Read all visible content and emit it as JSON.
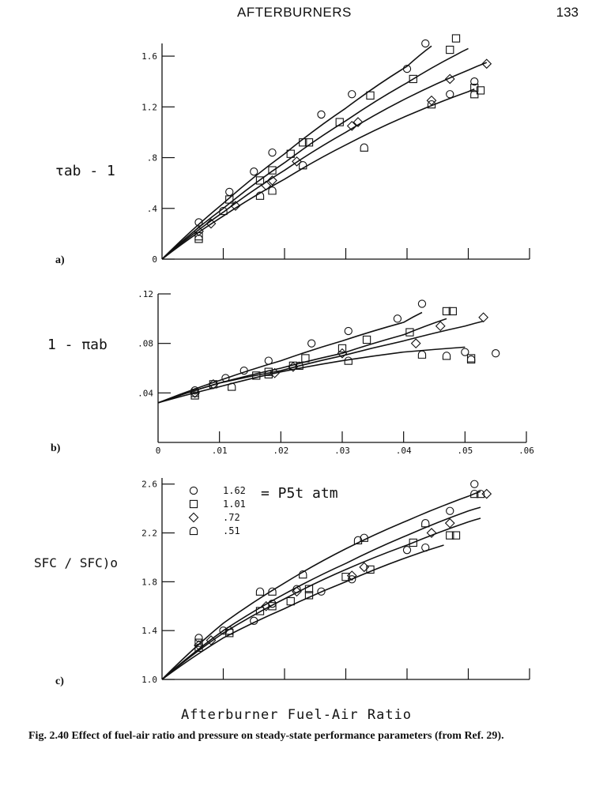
{
  "page": {
    "running_head": "AFTERBURNERS",
    "page_number": "133"
  },
  "figure": {
    "caption": "Fig. 2.40   Effect of fuel-air ratio and pressure on steady-state performance parameters (from Ref. 29).",
    "x_axis_label": "Afterburner Fuel-Air Ratio",
    "legend": {
      "title": "= P5t atm",
      "entries": [
        {
          "marker": "circle",
          "label": "1.62"
        },
        {
          "marker": "square",
          "label": "1.01"
        },
        {
          "marker": "diamond",
          "label": ".72"
        },
        {
          "marker": "dshape",
          "label": ".51"
        }
      ]
    }
  },
  "chart_data": [
    {
      "type": "scatter",
      "panel": "a)",
      "ylabel": "τab - 1",
      "xlim": [
        0,
        0.06
      ],
      "ylim": [
        0,
        1.7
      ],
      "yticks": [
        0,
        0.4,
        0.8,
        1.2,
        1.6
      ],
      "ytick_labels": [
        "0",
        ".4",
        ".8",
        "1.2",
        "1.6"
      ],
      "xticks": [
        0,
        0.01,
        0.02,
        0.03,
        0.04,
        0.05,
        0.06
      ],
      "series": [
        {
          "marker": "circle",
          "points": [
            [
              0.006,
              0.29
            ],
            [
              0.011,
              0.53
            ],
            [
              0.015,
              0.69
            ],
            [
              0.018,
              0.84
            ],
            [
              0.026,
              1.14
            ],
            [
              0.031,
              1.3
            ],
            [
              0.04,
              1.5
            ],
            [
              0.043,
              1.7
            ],
            [
              0.047,
              1.3
            ],
            [
              0.051,
              1.4
            ]
          ],
          "fit": [
            [
              0,
              0
            ],
            [
              0.01,
              0.44
            ],
            [
              0.02,
              0.83
            ],
            [
              0.03,
              1.19
            ],
            [
              0.04,
              1.52
            ],
            [
              0.044,
              1.68
            ]
          ]
        },
        {
          "marker": "square",
          "points": [
            [
              0.006,
              0.18
            ],
            [
              0.011,
              0.47
            ],
            [
              0.016,
              0.62
            ],
            [
              0.018,
              0.7
            ],
            [
              0.021,
              0.83
            ],
            [
              0.023,
              0.92
            ],
            [
              0.024,
              0.92
            ],
            [
              0.029,
              1.08
            ],
            [
              0.034,
              1.29
            ],
            [
              0.041,
              1.42
            ],
            [
              0.047,
              1.65
            ],
            [
              0.048,
              1.74
            ],
            [
              0.051,
              1.35
            ],
            [
              0.052,
              1.33
            ]
          ],
          "fit": [
            [
              0,
              0
            ],
            [
              0.01,
              0.4
            ],
            [
              0.02,
              0.76
            ],
            [
              0.03,
              1.09
            ],
            [
              0.04,
              1.39
            ],
            [
              0.05,
              1.66
            ],
            [
              0.048,
              1.61
            ]
          ]
        },
        {
          "marker": "diamond",
          "points": [
            [
              0.006,
              0.22
            ],
            [
              0.008,
              0.28
            ],
            [
              0.012,
              0.42
            ],
            [
              0.017,
              0.58
            ],
            [
              0.018,
              0.62
            ],
            [
              0.022,
              0.77
            ],
            [
              0.031,
              1.05
            ],
            [
              0.032,
              1.08
            ],
            [
              0.044,
              1.25
            ],
            [
              0.047,
              1.42
            ],
            [
              0.053,
              1.54
            ]
          ],
          "fit": [
            [
              0,
              0
            ],
            [
              0.01,
              0.37
            ],
            [
              0.02,
              0.7
            ],
            [
              0.03,
              1.0
            ],
            [
              0.04,
              1.27
            ],
            [
              0.05,
              1.49
            ],
            [
              0.053,
              1.55
            ]
          ]
        },
        {
          "marker": "dshape",
          "points": [
            [
              0.006,
              0.16
            ],
            [
              0.01,
              0.38
            ],
            [
              0.016,
              0.5
            ],
            [
              0.018,
              0.54
            ],
            [
              0.023,
              0.74
            ],
            [
              0.033,
              0.88
            ],
            [
              0.044,
              1.22
            ],
            [
              0.051,
              1.3
            ]
          ],
          "fit": [
            [
              0,
              0
            ],
            [
              0.01,
              0.34
            ],
            [
              0.02,
              0.63
            ],
            [
              0.03,
              0.9
            ],
            [
              0.04,
              1.13
            ],
            [
              0.05,
              1.32
            ],
            [
              0.051,
              1.34
            ]
          ]
        }
      ]
    },
    {
      "type": "scatter",
      "panel": "b)",
      "ylabel": "1 - πab",
      "xlim": [
        0,
        0.06
      ],
      "ylim": [
        0,
        0.12
      ],
      "yticks": [
        0.04,
        0.08,
        0.12
      ],
      "ytick_labels": [
        ".04",
        ".08",
        ".12"
      ],
      "xticks": [
        0,
        0.01,
        0.02,
        0.03,
        0.04,
        0.05,
        0.06
      ],
      "xtick_labels": [
        "0",
        ".01",
        ".02",
        ".03",
        ".04",
        ".05",
        ".06"
      ],
      "series": [
        {
          "marker": "circle",
          "points": [
            [
              0.006,
              0.042
            ],
            [
              0.011,
              0.052
            ],
            [
              0.014,
              0.058
            ],
            [
              0.018,
              0.066
            ],
            [
              0.025,
              0.08
            ],
            [
              0.031,
              0.09
            ],
            [
              0.039,
              0.1
            ],
            [
              0.043,
              0.112
            ],
            [
              0.055,
              0.072
            ],
            [
              0.05,
              0.073
            ]
          ],
          "fit": [
            [
              0,
              0.032
            ],
            [
              0.01,
              0.05
            ],
            [
              0.02,
              0.066
            ],
            [
              0.03,
              0.082
            ],
            [
              0.04,
              0.097
            ],
            [
              0.043,
              0.105
            ]
          ]
        },
        {
          "marker": "square",
          "points": [
            [
              0.006,
              0.04
            ],
            [
              0.009,
              0.047
            ],
            [
              0.016,
              0.054
            ],
            [
              0.018,
              0.057
            ],
            [
              0.022,
              0.062
            ],
            [
              0.024,
              0.068
            ],
            [
              0.03,
              0.076
            ],
            [
              0.034,
              0.083
            ],
            [
              0.041,
              0.089
            ],
            [
              0.047,
              0.106
            ],
            [
              0.048,
              0.106
            ],
            [
              0.051,
              0.068
            ]
          ],
          "fit": [
            [
              0,
              0.032
            ],
            [
              0.01,
              0.048
            ],
            [
              0.02,
              0.06
            ],
            [
              0.03,
              0.072
            ],
            [
              0.04,
              0.087
            ],
            [
              0.047,
              0.1
            ]
          ]
        },
        {
          "marker": "diamond",
          "points": [
            [
              0.006,
              0.04
            ],
            [
              0.009,
              0.047
            ],
            [
              0.019,
              0.056
            ],
            [
              0.022,
              0.061
            ],
            [
              0.03,
              0.072
            ],
            [
              0.042,
              0.08
            ],
            [
              0.046,
              0.094
            ],
            [
              0.053,
              0.101
            ]
          ],
          "fit": [
            [
              0,
              0.032
            ],
            [
              0.01,
              0.048
            ],
            [
              0.02,
              0.058
            ],
            [
              0.03,
              0.07
            ],
            [
              0.04,
              0.082
            ],
            [
              0.05,
              0.094
            ],
            [
              0.053,
              0.098
            ]
          ]
        },
        {
          "marker": "dshape",
          "points": [
            [
              0.006,
              0.038
            ],
            [
              0.012,
              0.045
            ],
            [
              0.018,
              0.055
            ],
            [
              0.023,
              0.062
            ],
            [
              0.031,
              0.066
            ],
            [
              0.043,
              0.071
            ],
            [
              0.047,
              0.07
            ],
            [
              0.051,
              0.067
            ]
          ],
          "fit": [
            [
              0,
              0.032
            ],
            [
              0.01,
              0.045
            ],
            [
              0.02,
              0.057
            ],
            [
              0.03,
              0.066
            ],
            [
              0.04,
              0.073
            ],
            [
              0.05,
              0.077
            ]
          ]
        }
      ]
    },
    {
      "type": "scatter",
      "panel": "c)",
      "ylabel": "SFC / SFC)o",
      "xlim": [
        0,
        0.06
      ],
      "ylim": [
        1.0,
        2.65
      ],
      "yticks": [
        1.0,
        1.4,
        1.8,
        2.2,
        2.6
      ],
      "ytick_labels": [
        "1.0",
        "1.4",
        "1.8",
        "2.2",
        "2.6"
      ],
      "xticks": [
        0,
        0.01,
        0.02,
        0.03,
        0.04,
        0.05,
        0.06
      ],
      "series": [
        {
          "marker": "circle",
          "points": [
            [
              0.006,
              1.34
            ],
            [
              0.01,
              1.4
            ],
            [
              0.015,
              1.48
            ],
            [
              0.018,
              1.62
            ],
            [
              0.022,
              1.74
            ],
            [
              0.026,
              1.72
            ],
            [
              0.031,
              1.82
            ],
            [
              0.04,
              2.06
            ],
            [
              0.043,
              2.08
            ],
            [
              0.047,
              2.38
            ],
            [
              0.051,
              2.6
            ]
          ],
          "fit": [
            [
              0,
              1.0
            ],
            [
              0.01,
              1.38
            ],
            [
              0.02,
              1.66
            ],
            [
              0.03,
              1.9
            ],
            [
              0.04,
              2.1
            ],
            [
              0.05,
              2.29
            ],
            [
              0.052,
              2.32
            ]
          ]
        },
        {
          "marker": "square",
          "points": [
            [
              0.006,
              1.3
            ],
            [
              0.011,
              1.38
            ],
            [
              0.016,
              1.56
            ],
            [
              0.018,
              1.6
            ],
            [
              0.021,
              1.64
            ],
            [
              0.024,
              1.69
            ],
            [
              0.024,
              1.74
            ],
            [
              0.03,
              1.84
            ],
            [
              0.034,
              1.9
            ],
            [
              0.041,
              2.12
            ],
            [
              0.047,
              2.18
            ],
            [
              0.048,
              2.18
            ]
          ],
          "fit": [
            [
              0,
              1.0
            ],
            [
              0.01,
              1.4
            ],
            [
              0.02,
              1.7
            ],
            [
              0.03,
              1.95
            ],
            [
              0.04,
              2.18
            ],
            [
              0.05,
              2.38
            ],
            [
              0.052,
              2.41
            ]
          ]
        },
        {
          "marker": "diamond",
          "points": [
            [
              0.006,
              1.28
            ],
            [
              0.008,
              1.32
            ],
            [
              0.017,
              1.6
            ],
            [
              0.022,
              1.72
            ],
            [
              0.031,
              1.85
            ],
            [
              0.033,
              1.92
            ],
            [
              0.044,
              2.2
            ],
            [
              0.047,
              2.28
            ],
            [
              0.053,
              2.52
            ]
          ],
          "fit": [
            [
              0,
              1.0
            ],
            [
              0.01,
              1.34
            ],
            [
              0.02,
              1.58
            ],
            [
              0.03,
              1.8
            ],
            [
              0.04,
              2.0
            ],
            [
              0.046,
              2.1
            ]
          ]
        },
        {
          "marker": "dshape",
          "points": [
            [
              0.006,
              1.26
            ],
            [
              0.011,
              1.4
            ],
            [
              0.016,
              1.72
            ],
            [
              0.018,
              1.72
            ],
            [
              0.023,
              1.86
            ],
            [
              0.032,
              2.14
            ],
            [
              0.033,
              2.16
            ],
            [
              0.043,
              2.28
            ],
            [
              0.051,
              2.52
            ],
            [
              0.052,
              2.52
            ]
          ],
          "fit": [
            [
              0,
              1.0
            ],
            [
              0.01,
              1.46
            ],
            [
              0.02,
              1.79
            ],
            [
              0.03,
              2.07
            ],
            [
              0.04,
              2.3
            ],
            [
              0.05,
              2.5
            ],
            [
              0.052,
              2.54
            ]
          ]
        }
      ]
    }
  ]
}
